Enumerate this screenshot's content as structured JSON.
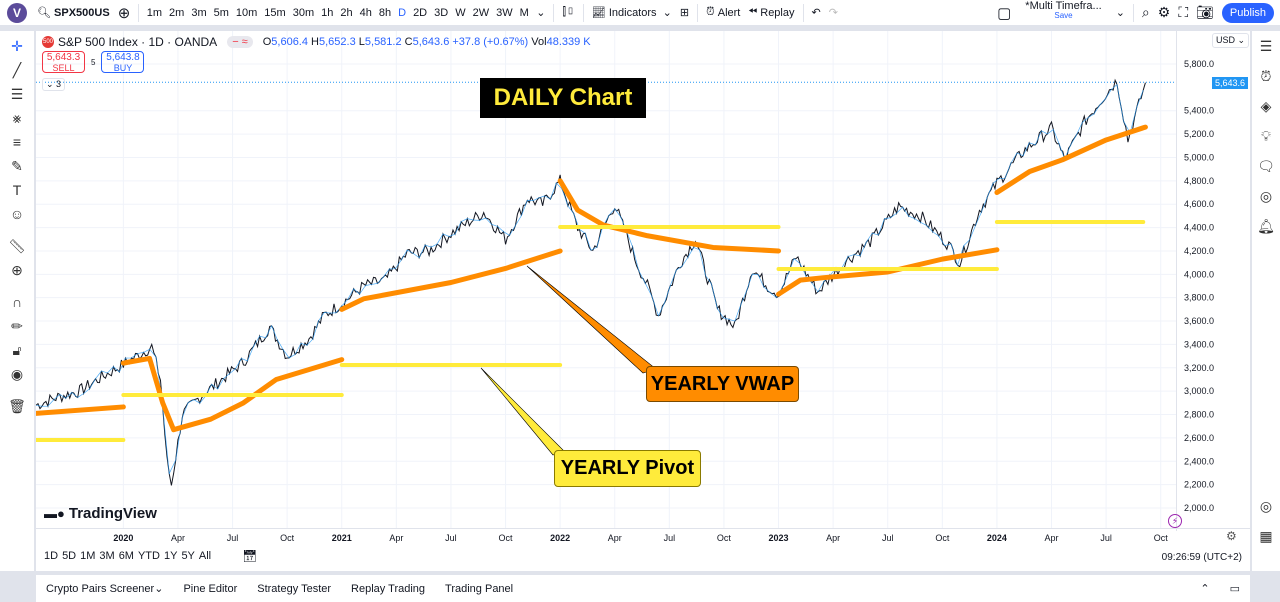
{
  "topbar": {
    "avatar": "V",
    "symbol": "SPX500US",
    "timeframes": [
      "1m",
      "2m",
      "3m",
      "5m",
      "10m",
      "15m",
      "30m",
      "1h",
      "2h",
      "4h",
      "8h",
      "D",
      "2D",
      "3D",
      "W",
      "2W",
      "3W",
      "M"
    ],
    "active_timeframe": "D",
    "indicators": "Indicators",
    "alert": "Alert",
    "replay": "Replay",
    "layout_name": "*Multi Timefra...",
    "layout_save": "Save",
    "publish": "Publish"
  },
  "legend": {
    "title": "S&P 500 Index · 1D · OANDA",
    "badge": "500",
    "o_label": "O",
    "o": "5,606.4",
    "h_label": "H",
    "h": "5,652.3",
    "l_label": "L",
    "l": "5,581.2",
    "c_label": "C",
    "c": "5,643.6",
    "change": "+37.8 (+0.67%)",
    "vol_label": "Vol",
    "vol": "48.339 K",
    "sell_price": "5,643.3",
    "sell": "SELL",
    "spread": "5",
    "buy_price": "5,643.8",
    "buy": "BUY",
    "collapse": "3"
  },
  "annotations": {
    "daily": "DAILY Chart",
    "vwap": "YEARLY VWAP",
    "pivot": "YEARLY Pivot"
  },
  "logo": "TradingView",
  "currency": "USD",
  "last_price": "5,643.6",
  "colors": {
    "price": "#131722",
    "up": "#2196f3",
    "vwap": "#ff8c00",
    "pivot": "#ffeb3b",
    "accent": "#2962ff"
  },
  "chart_data": {
    "type": "line",
    "ylim": [
      2000,
      5800
    ],
    "yticks": [
      2000,
      2200,
      2400,
      2600,
      2800,
      3000,
      3200,
      3400,
      3600,
      3800,
      4000,
      4200,
      4400,
      4600,
      4800,
      5000,
      5200,
      5400,
      5800
    ],
    "ytick_labels": [
      "2,000.0",
      "2,200.0",
      "2,400.0",
      "2,600.0",
      "2,800.0",
      "3,000.0",
      "3,200.0",
      "3,400.0",
      "3,600.0",
      "3,800.0",
      "4,000.0",
      "4,200.0",
      "4,400.0",
      "4,600.0",
      "4,800.0",
      "5,000.0",
      "5,200.0",
      "5,400.0",
      "5,800.0"
    ],
    "xlim": [
      2019.6,
      2024.82
    ],
    "xticks": [
      {
        "x": 2020,
        "label": "2020",
        "bold": true
      },
      {
        "x": 2020.25,
        "label": "Apr"
      },
      {
        "x": 2020.5,
        "label": "Jul"
      },
      {
        "x": 2020.75,
        "label": "Oct"
      },
      {
        "x": 2021,
        "label": "2021",
        "bold": true
      },
      {
        "x": 2021.25,
        "label": "Apr"
      },
      {
        "x": 2021.5,
        "label": "Jul"
      },
      {
        "x": 2021.75,
        "label": "Oct"
      },
      {
        "x": 2022,
        "label": "2022",
        "bold": true
      },
      {
        "x": 2022.25,
        "label": "Apr"
      },
      {
        "x": 2022.5,
        "label": "Jul"
      },
      {
        "x": 2022.75,
        "label": "Oct"
      },
      {
        "x": 2023,
        "label": "2023",
        "bold": true
      },
      {
        "x": 2023.25,
        "label": "Apr"
      },
      {
        "x": 2023.5,
        "label": "Jul"
      },
      {
        "x": 2023.75,
        "label": "Oct"
      },
      {
        "x": 2024,
        "label": "2024",
        "bold": true
      },
      {
        "x": 2024.25,
        "label": "Apr"
      },
      {
        "x": 2024.5,
        "label": "Jul"
      },
      {
        "x": 2024.75,
        "label": "Oct"
      }
    ],
    "price": [
      [
        2019.6,
        2880
      ],
      [
        2019.7,
        2950
      ],
      [
        2019.8,
        3000
      ],
      [
        2019.9,
        3120
      ],
      [
        2020.0,
        3230
      ],
      [
        2020.13,
        3380
      ],
      [
        2020.17,
        3100
      ],
      [
        2020.2,
        2400
      ],
      [
        2020.22,
        2200
      ],
      [
        2020.27,
        2800
      ],
      [
        2020.35,
        2950
      ],
      [
        2020.45,
        3100
      ],
      [
        2020.55,
        3250
      ],
      [
        2020.67,
        3550
      ],
      [
        2020.75,
        3300
      ],
      [
        2020.85,
        3450
      ],
      [
        2020.92,
        3650
      ],
      [
        2021.0,
        3750
      ],
      [
        2021.1,
        3900
      ],
      [
        2021.2,
        3950
      ],
      [
        2021.3,
        4180
      ],
      [
        2021.4,
        4200
      ],
      [
        2021.5,
        4350
      ],
      [
        2021.65,
        4530
      ],
      [
        2021.75,
        4300
      ],
      [
        2021.85,
        4650
      ],
      [
        2021.92,
        4600
      ],
      [
        2022.0,
        4800
      ],
      [
        2022.08,
        4400
      ],
      [
        2022.15,
        4200
      ],
      [
        2022.25,
        4600
      ],
      [
        2022.35,
        4100
      ],
      [
        2022.4,
        3900
      ],
      [
        2022.45,
        3650
      ],
      [
        2022.55,
        4100
      ],
      [
        2022.62,
        4300
      ],
      [
        2022.72,
        3700
      ],
      [
        2022.8,
        3550
      ],
      [
        2022.88,
        4050
      ],
      [
        2022.95,
        3900
      ],
      [
        2023.0,
        3830
      ],
      [
        2023.08,
        4150
      ],
      [
        2023.18,
        3850
      ],
      [
        2023.3,
        4100
      ],
      [
        2023.42,
        4280
      ],
      [
        2023.55,
        4580
      ],
      [
        2023.65,
        4500
      ],
      [
        2023.78,
        4250
      ],
      [
        2023.83,
        4100
      ],
      [
        2023.92,
        4550
      ],
      [
        2024.0,
        4780
      ],
      [
        2024.12,
        5050
      ],
      [
        2024.25,
        5250
      ],
      [
        2024.31,
        4980
      ],
      [
        2024.4,
        5300
      ],
      [
        2024.48,
        5500
      ],
      [
        2024.55,
        5660
      ],
      [
        2024.6,
        5150
      ],
      [
        2024.65,
        5450
      ],
      [
        2024.68,
        5640
      ]
    ],
    "series": [
      {
        "name": "YEARLY VWAP",
        "color": "#ff8c00",
        "segments": [
          [
            [
              2019.6,
              2810
            ],
            [
              2020.0,
              2865
            ]
          ],
          [
            [
              2020.0,
              3240
            ],
            [
              2020.12,
              3280
            ],
            [
              2020.18,
              2900
            ],
            [
              2020.23,
              2670
            ],
            [
              2020.4,
              2760
            ],
            [
              2020.55,
              2900
            ],
            [
              2020.7,
              3100
            ],
            [
              2021.0,
              3270
            ]
          ],
          [
            [
              2021.0,
              3700
            ],
            [
              2021.1,
              3790
            ],
            [
              2021.5,
              3930
            ],
            [
              2021.75,
              4050
            ],
            [
              2022.0,
              4200
            ]
          ],
          [
            [
              2022.0,
              4800
            ],
            [
              2022.08,
              4550
            ],
            [
              2022.2,
              4420
            ],
            [
              2022.4,
              4330
            ],
            [
              2022.7,
              4230
            ],
            [
              2023.0,
              4200
            ]
          ],
          [
            [
              2023.0,
              3830
            ],
            [
              2023.1,
              3950
            ],
            [
              2023.2,
              3970
            ],
            [
              2023.5,
              4020
            ],
            [
              2023.75,
              4130
            ],
            [
              2024.0,
              4210
            ]
          ],
          [
            [
              2024.0,
              4700
            ],
            [
              2024.15,
              4880
            ],
            [
              2024.3,
              4980
            ],
            [
              2024.5,
              5150
            ],
            [
              2024.68,
              5260
            ]
          ]
        ]
      },
      {
        "name": "YEARLY Pivot",
        "color": "#ffeb3b",
        "segments": [
          [
            [
              2019.6,
              2582
            ],
            [
              2020.0,
              2582
            ]
          ],
          [
            [
              2020.0,
              2967
            ],
            [
              2021.0,
              2967
            ]
          ],
          [
            [
              2021.0,
              3224
            ],
            [
              2022.0,
              3224
            ]
          ],
          [
            [
              2022.0,
              4405
            ],
            [
              2023.0,
              4405
            ]
          ],
          [
            [
              2023.0,
              4046
            ],
            [
              2024.0,
              4046
            ]
          ],
          [
            [
              2024.0,
              4448
            ],
            [
              2024.67,
              4448
            ]
          ]
        ]
      }
    ]
  },
  "footer": {
    "ranges": [
      "1D",
      "5D",
      "1M",
      "3M",
      "6M",
      "YTD",
      "1Y",
      "5Y",
      "All"
    ],
    "time": "09:26:59 (UTC+2)",
    "tabs": [
      "Crypto Pairs Screener",
      "Pine Editor",
      "Strategy Tester",
      "Replay Trading",
      "Trading Panel"
    ]
  }
}
